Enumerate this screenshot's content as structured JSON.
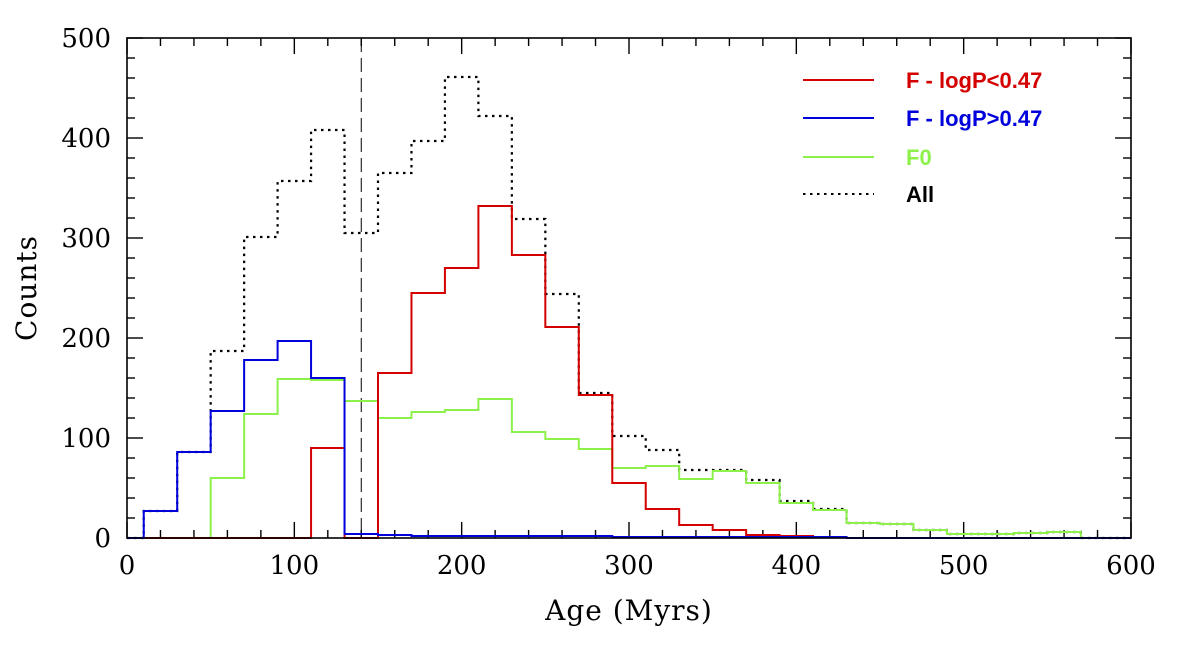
{
  "chart_data": {
    "type": "histogram",
    "title": "",
    "xlabel": "Age (Myrs)",
    "ylabel": "Counts",
    "xlim": [
      0,
      600
    ],
    "ylim": [
      0,
      500
    ],
    "x_major_ticks": [
      0,
      100,
      200,
      300,
      400,
      500,
      600
    ],
    "y_major_ticks": [
      0,
      100,
      200,
      300,
      400,
      500
    ],
    "x_tick_labels": [
      "0",
      "100",
      "200",
      "300",
      "400",
      "500",
      "600"
    ],
    "y_tick_labels": [
      "0",
      "100",
      "200",
      "300",
      "400",
      "500"
    ],
    "x_minor_step": 20,
    "y_minor_step": 20,
    "grid": false,
    "legend_position": "top-right",
    "bin_edges": [
      0,
      10,
      30,
      50,
      70,
      90,
      110,
      130,
      150,
      170,
      190,
      210,
      230,
      250,
      270,
      290,
      310,
      330,
      350,
      370,
      390,
      410,
      430,
      450,
      470,
      490,
      510,
      530,
      550,
      570,
      590,
      600
    ],
    "vertical_reference_line": {
      "x": 140,
      "style": "dashed"
    },
    "series": [
      {
        "name": "F - logP<0.47",
        "color": "#d40000",
        "style": "solid",
        "values": [
          0,
          0,
          0,
          0,
          0,
          0,
          90,
          0,
          165,
          245,
          270,
          332,
          283,
          211,
          143,
          55,
          29,
          13,
          8,
          3,
          2,
          1,
          0,
          0,
          0,
          0,
          0,
          0,
          0,
          0,
          0
        ]
      },
      {
        "name": "F - logP>0.47",
        "color": "#0000dd",
        "style": "solid",
        "values": [
          0,
          27,
          86,
          127,
          178,
          197,
          160,
          4,
          3,
          2,
          2,
          2,
          2,
          2,
          2,
          1,
          1,
          1,
          1,
          1,
          1,
          1,
          0,
          0,
          0,
          0,
          0,
          0,
          0,
          0,
          0
        ]
      },
      {
        "name": "F0",
        "color": "#8cf24b",
        "style": "solid",
        "values": [
          0,
          0,
          0,
          60,
          124,
          159,
          158,
          137,
          120,
          126,
          128,
          139,
          106,
          99,
          89,
          70,
          72,
          59,
          67,
          55,
          35,
          28,
          15,
          14,
          8,
          4,
          4,
          5,
          6,
          0,
          0
        ]
      },
      {
        "name": "All",
        "color": "#000000",
        "style": "dotted",
        "values": [
          0,
          27,
          86,
          187,
          301,
          357,
          408,
          305,
          365,
          397,
          461,
          422,
          319,
          244,
          145,
          102,
          88,
          68,
          68,
          58,
          37,
          29,
          15,
          14,
          8,
          4,
          4,
          5,
          6,
          0,
          0
        ]
      }
    ]
  }
}
